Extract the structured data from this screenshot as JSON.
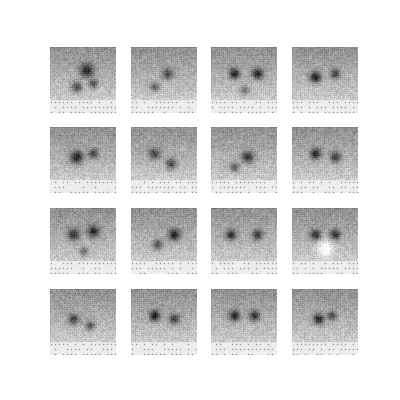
{
  "figure": {
    "rows": 4,
    "cols": 4,
    "samples": [
      {
        "seed": 11,
        "blobs": [
          [
            0.55,
            0.35,
            0.1,
            0.55
          ],
          [
            0.4,
            0.6,
            0.08,
            0.45
          ],
          [
            0.65,
            0.55,
            0.07,
            0.4
          ]
        ]
      },
      {
        "seed": 23,
        "blobs": [
          [
            0.55,
            0.4,
            0.08,
            0.4
          ],
          [
            0.35,
            0.6,
            0.07,
            0.35
          ]
        ]
      },
      {
        "seed": 37,
        "blobs": [
          [
            0.35,
            0.4,
            0.08,
            0.55
          ],
          [
            0.7,
            0.4,
            0.08,
            0.55
          ],
          [
            0.5,
            0.65,
            0.07,
            0.3
          ]
        ]
      },
      {
        "seed": 41,
        "blobs": [
          [
            0.35,
            0.45,
            0.08,
            0.6
          ],
          [
            0.65,
            0.4,
            0.07,
            0.45
          ]
        ]
      },
      {
        "seed": 53,
        "blobs": [
          [
            0.4,
            0.45,
            0.1,
            0.55
          ],
          [
            0.65,
            0.4,
            0.07,
            0.45
          ]
        ]
      },
      {
        "seed": 61,
        "blobs": [
          [
            0.35,
            0.4,
            0.09,
            0.4
          ],
          [
            0.6,
            0.55,
            0.08,
            0.45
          ]
        ]
      },
      {
        "seed": 71,
        "blobs": [
          [
            0.55,
            0.45,
            0.09,
            0.5
          ],
          [
            0.35,
            0.6,
            0.07,
            0.4
          ]
        ]
      },
      {
        "seed": 79,
        "blobs": [
          [
            0.35,
            0.4,
            0.08,
            0.55
          ],
          [
            0.65,
            0.45,
            0.08,
            0.45
          ]
        ]
      },
      {
        "seed": 83,
        "blobs": [
          [
            0.35,
            0.4,
            0.09,
            0.5
          ],
          [
            0.65,
            0.35,
            0.09,
            0.5
          ],
          [
            0.5,
            0.65,
            0.07,
            0.35
          ]
        ]
      },
      {
        "seed": 89,
        "blobs": [
          [
            0.65,
            0.4,
            0.09,
            0.55
          ],
          [
            0.4,
            0.55,
            0.08,
            0.4
          ]
        ]
      },
      {
        "seed": 97,
        "blobs": [
          [
            0.3,
            0.4,
            0.08,
            0.5
          ],
          [
            0.7,
            0.4,
            0.08,
            0.45
          ]
        ]
      },
      {
        "seed": 101,
        "blobs": [
          [
            0.35,
            0.4,
            0.08,
            0.5
          ],
          [
            0.65,
            0.4,
            0.08,
            0.5
          ],
          [
            0.5,
            0.6,
            0.12,
            -0.35
          ]
        ]
      },
      {
        "seed": 107,
        "blobs": [
          [
            0.35,
            0.45,
            0.08,
            0.45
          ],
          [
            0.6,
            0.55,
            0.07,
            0.4
          ]
        ]
      },
      {
        "seed": 113,
        "blobs": [
          [
            0.35,
            0.4,
            0.08,
            0.6
          ],
          [
            0.65,
            0.45,
            0.08,
            0.45
          ]
        ]
      },
      {
        "seed": 127,
        "blobs": [
          [
            0.35,
            0.4,
            0.08,
            0.55
          ],
          [
            0.65,
            0.4,
            0.08,
            0.5
          ]
        ]
      },
      {
        "seed": 131,
        "blobs": [
          [
            0.4,
            0.45,
            0.08,
            0.55
          ],
          [
            0.6,
            0.4,
            0.07,
            0.4
          ]
        ]
      }
    ]
  }
}
